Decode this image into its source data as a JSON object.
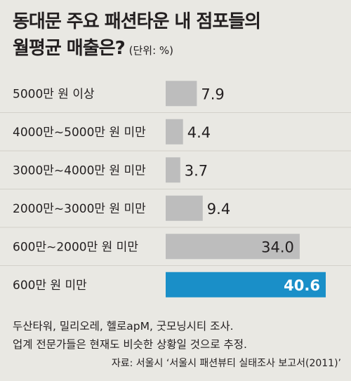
{
  "header": {
    "title_line1": "동대문 주요 패션타운 내 점포들의",
    "title_line2": "월평균 매출은?",
    "unit": "(단위: %)"
  },
  "chart_data": {
    "type": "bar",
    "orientation": "horizontal",
    "categories": [
      "5000만 원 이상",
      "4000만~5000만 원 미만",
      "3000만~4000만 원 미만",
      "2000만~3000만 원 미만",
      "600만~2000만 원 미만",
      "600만 원 미만"
    ],
    "values": [
      7.9,
      4.4,
      3.7,
      9.4,
      34.0,
      40.6
    ],
    "value_labels": [
      "7.9",
      "4.4",
      "3.7",
      "9.4",
      "34.0",
      "40.6"
    ],
    "highlight_index": 5,
    "colors": {
      "bar": "#bdbdbd",
      "highlight": "#1a8fc8",
      "background": "#e9e8e3"
    },
    "xlim": [
      0,
      40.6
    ],
    "grid": false
  },
  "notes": {
    "line1": "두산타워, 밀리오레, 헬로apM, 굿모닝시티 조사.",
    "line2": "업계 전문가들은 현재도 비슷한 상황일 것으로 추정."
  },
  "source": "자료: 서울시 ‘서울시 패션뷰티 실태조사 보고서(2011)’"
}
